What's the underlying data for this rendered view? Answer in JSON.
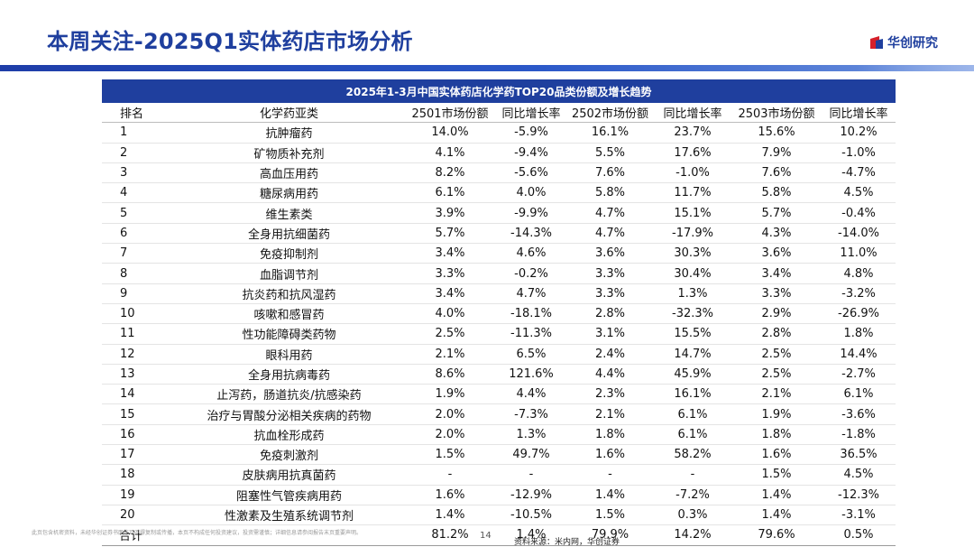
{
  "page": {
    "title": "本周关注-2025Q1实体药店市场分析",
    "brand": "华创研究",
    "page_number": "14",
    "source": "资料来源：米内网，华创证券",
    "disclaimer": "此页包含机密资料，未经华创证券书面许可不得复制或传播，本页不构成任何投资建议，投资需谨慎；详细信息请参阅报告末页重要声明。",
    "colors": {
      "primary": "#1f3f9e",
      "bar_end": "#6e93de",
      "logo_red": "#d6202a"
    }
  },
  "table": {
    "caption": "2025年1-3月中国实体药店化学药TOP20品类份额及增长趋势",
    "headers": [
      "排名",
      "化学药亚类",
      "2501市场份额",
      "同比增长率",
      "2502市场份额",
      "同比增长率",
      "2503市场份额",
      "同比增长率"
    ],
    "rows": [
      [
        "1",
        "抗肿瘤药",
        "14.0%",
        "-5.9%",
        "16.1%",
        "23.7%",
        "15.6%",
        "10.2%"
      ],
      [
        "2",
        "矿物质补充剂",
        "4.1%",
        "-9.4%",
        "5.5%",
        "17.6%",
        "7.9%",
        "-1.0%"
      ],
      [
        "3",
        "高血压用药",
        "8.2%",
        "-5.6%",
        "7.6%",
        "-1.0%",
        "7.6%",
        "-4.7%"
      ],
      [
        "4",
        "糖尿病用药",
        "6.1%",
        "4.0%",
        "5.8%",
        "11.7%",
        "5.8%",
        "4.5%"
      ],
      [
        "5",
        "维生素类",
        "3.9%",
        "-9.9%",
        "4.7%",
        "15.1%",
        "5.7%",
        "-0.4%"
      ],
      [
        "6",
        "全身用抗细菌药",
        "5.7%",
        "-14.3%",
        "4.7%",
        "-17.9%",
        "4.3%",
        "-14.0%"
      ],
      [
        "7",
        "免疫抑制剂",
        "3.4%",
        "4.6%",
        "3.6%",
        "30.3%",
        "3.6%",
        "11.0%"
      ],
      [
        "8",
        "血脂调节剂",
        "3.3%",
        "-0.2%",
        "3.3%",
        "30.4%",
        "3.4%",
        "4.8%"
      ],
      [
        "9",
        "抗炎药和抗风湿药",
        "3.4%",
        "4.7%",
        "3.3%",
        "1.3%",
        "3.3%",
        "-3.2%"
      ],
      [
        "10",
        "咳嗽和感冒药",
        "4.0%",
        "-18.1%",
        "2.8%",
        "-32.3%",
        "2.9%",
        "-26.9%"
      ],
      [
        "11",
        "性功能障碍类药物",
        "2.5%",
        "-11.3%",
        "3.1%",
        "15.5%",
        "2.8%",
        "1.8%"
      ],
      [
        "12",
        "眼科用药",
        "2.1%",
        "6.5%",
        "2.4%",
        "14.7%",
        "2.5%",
        "14.4%"
      ],
      [
        "13",
        "全身用抗病毒药",
        "8.6%",
        "121.6%",
        "4.4%",
        "45.9%",
        "2.5%",
        "-2.7%"
      ],
      [
        "14",
        "止泻药，肠道抗炎/抗感染药",
        "1.9%",
        "4.4%",
        "2.3%",
        "16.1%",
        "2.1%",
        "6.1%"
      ],
      [
        "15",
        "治疗与胃酸分泌相关疾病的药物",
        "2.0%",
        "-7.3%",
        "2.1%",
        "6.1%",
        "1.9%",
        "-3.6%"
      ],
      [
        "16",
        "抗血栓形成药",
        "2.0%",
        "1.3%",
        "1.8%",
        "6.1%",
        "1.8%",
        "-1.8%"
      ],
      [
        "17",
        "免疫刺激剂",
        "1.5%",
        "49.7%",
        "1.6%",
        "58.2%",
        "1.6%",
        "36.5%"
      ],
      [
        "18",
        "皮肤病用抗真菌药",
        "-",
        "-",
        "-",
        "-",
        "1.5%",
        "4.5%"
      ],
      [
        "19",
        "阻塞性气管疾病用药",
        "1.6%",
        "-12.9%",
        "1.4%",
        "-7.2%",
        "1.4%",
        "-12.3%"
      ],
      [
        "20",
        "性激素及生殖系统调节剂",
        "1.4%",
        "-10.5%",
        "1.5%",
        "0.3%",
        "1.4%",
        "-3.1%"
      ]
    ],
    "total": [
      "合计",
      "",
      "81.2%",
      "1.4%",
      "79.9%",
      "14.2%",
      "79.6%",
      "0.5%"
    ]
  }
}
